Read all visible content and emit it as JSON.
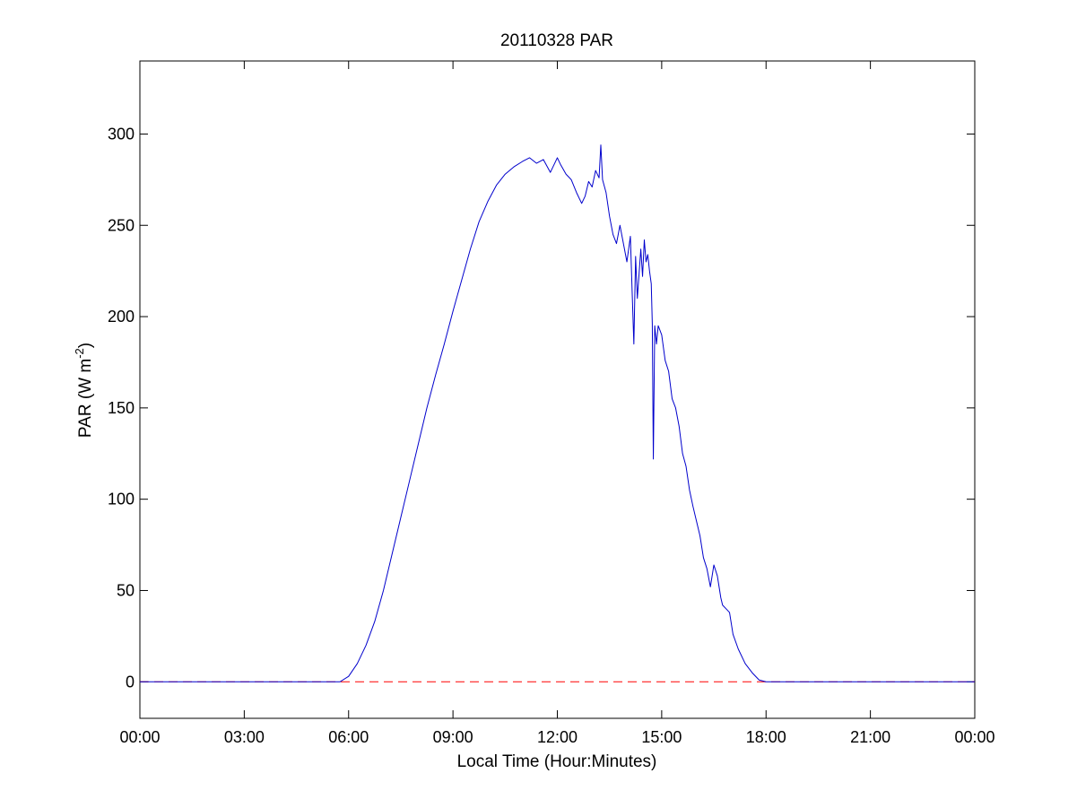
{
  "chart_data": {
    "type": "line",
    "title": "20110328 PAR",
    "xlabel": "Local Time (Hour:Minutes)",
    "ylabel": {
      "main": "PAR (W m",
      "superscript": "-2",
      "close": ")"
    },
    "xlim": [
      0,
      24
    ],
    "ylim": [
      -20,
      340
    ],
    "x_ticks": [
      0,
      3,
      6,
      9,
      12,
      15,
      18,
      21,
      24
    ],
    "x_tick_labels": [
      "00:00",
      "03:00",
      "06:00",
      "09:00",
      "12:00",
      "15:00",
      "18:00",
      "21:00",
      "00:00"
    ],
    "y_ticks": [
      0,
      50,
      100,
      150,
      200,
      250,
      300
    ],
    "y_tick_labels": [
      "0",
      "50",
      "100",
      "150",
      "200",
      "250",
      "300"
    ],
    "grid": false,
    "series": [
      {
        "color": "#0000cc",
        "style": "solid",
        "x": [
          0,
          5.75,
          6.0,
          6.25,
          6.5,
          6.75,
          7.0,
          7.25,
          7.5,
          7.75,
          8.0,
          8.25,
          8.5,
          8.75,
          9.0,
          9.25,
          9.5,
          9.75,
          10.0,
          10.25,
          10.5,
          10.75,
          11.0,
          11.2,
          11.4,
          11.6,
          11.8,
          12.0,
          12.1,
          12.25,
          12.4,
          12.55,
          12.7,
          12.8,
          12.9,
          13.0,
          13.1,
          13.2,
          13.25,
          13.3,
          13.4,
          13.5,
          13.6,
          13.7,
          13.8,
          13.9,
          14.0,
          14.1,
          14.15,
          14.2,
          14.25,
          14.3,
          14.4,
          14.45,
          14.5,
          14.55,
          14.6,
          14.65,
          14.7,
          14.73,
          14.76,
          14.8,
          14.85,
          14.9,
          15.0,
          15.1,
          15.2,
          15.3,
          15.4,
          15.5,
          15.6,
          15.7,
          15.8,
          15.9,
          16.0,
          16.1,
          16.2,
          16.3,
          16.4,
          16.5,
          16.6,
          16.7,
          16.75,
          16.85,
          16.95,
          17.05,
          17.2,
          17.4,
          17.6,
          17.8,
          18.0,
          18.2,
          18.4,
          18.6,
          24
        ],
        "y": [
          0,
          0,
          3,
          10,
          20,
          33,
          50,
          70,
          90,
          110,
          130,
          150,
          168,
          185,
          203,
          220,
          237,
          252,
          263,
          272,
          278,
          282,
          285,
          287,
          284,
          286,
          279,
          287,
          283,
          278,
          275,
          268,
          262,
          266,
          274,
          271,
          280,
          276,
          294,
          275,
          268,
          255,
          245,
          240,
          250,
          240,
          230,
          244,
          214,
          185,
          233,
          210,
          237,
          222,
          242,
          230,
          234,
          225,
          218,
          196,
          122,
          195,
          185,
          195,
          190,
          176,
          170,
          155,
          150,
          140,
          125,
          118,
          105,
          96,
          88,
          80,
          68,
          62,
          52,
          64,
          58,
          46,
          42,
          40,
          38,
          26,
          18,
          10,
          5,
          1,
          0,
          0,
          0,
          0,
          0
        ]
      },
      {
        "color": "#ff0000",
        "style": "dashed",
        "x": [
          0,
          24
        ],
        "y": [
          0,
          0
        ]
      }
    ]
  }
}
